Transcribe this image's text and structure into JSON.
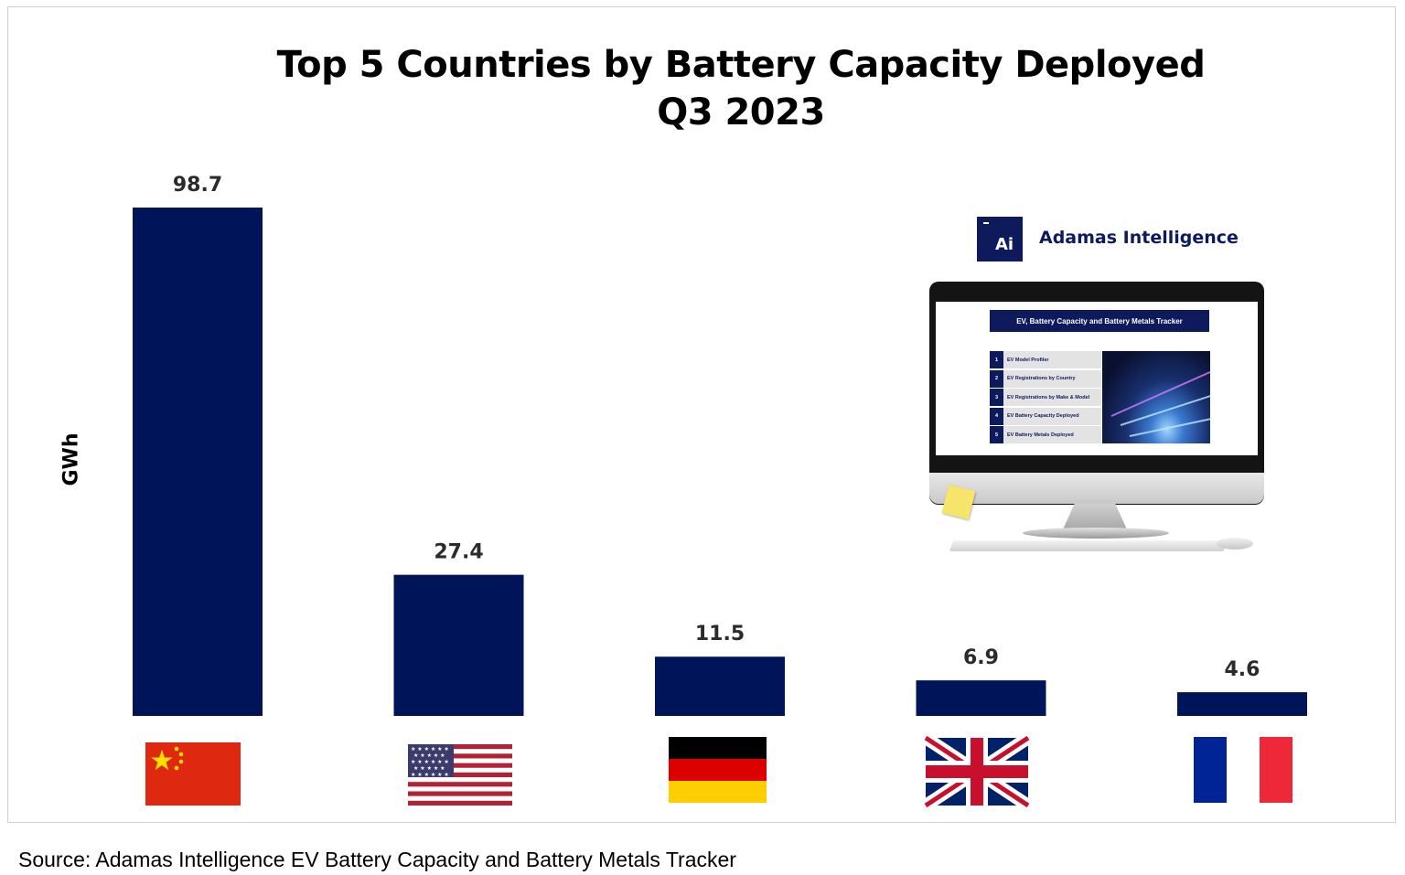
{
  "chart_data": {
    "type": "bar",
    "title": "Top 5 Countries by Battery Capacity Deployed",
    "subtitle": "Q3 2023",
    "ylabel": "GWh",
    "xlabel": "",
    "categories": [
      "China",
      "United States",
      "Germany",
      "United Kingdom",
      "France"
    ],
    "values": [
      98.7,
      27.4,
      11.5,
      6.9,
      4.6
    ],
    "value_labels": [
      "98.7",
      "27.4",
      "11.5",
      "6.9",
      "4.6"
    ],
    "ylim": [
      0,
      98.7
    ],
    "grid": false,
    "legend": "none",
    "bar_color": "#001559",
    "category_display": "flag-icons"
  },
  "source": "Source: Adamas Intelligence EV Battery Capacity and Battery Metals Tracker",
  "promo": {
    "logo_text": "Ai",
    "brand": "Adamas Intelligence",
    "screen_title": "EV, Battery Capacity and Battery Metals Tracker",
    "menu": [
      {
        "num": "1",
        "label": "EV Model Profiler"
      },
      {
        "num": "2",
        "label": "EV Registrations by Country"
      },
      {
        "num": "3",
        "label": "EV Registrations by Make & Model"
      },
      {
        "num": "4",
        "label": "EV Battery Capacity Deployed"
      },
      {
        "num": "5",
        "label": "EV Battery Metals Deployed"
      }
    ]
  },
  "colors": {
    "brand_navy": "#0d1a5c",
    "bar": "#001559"
  },
  "icons": [
    "china-flag-icon",
    "usa-flag-icon",
    "germany-flag-icon",
    "uk-flag-icon",
    "france-flag-icon",
    "computer-monitor-icon"
  ]
}
